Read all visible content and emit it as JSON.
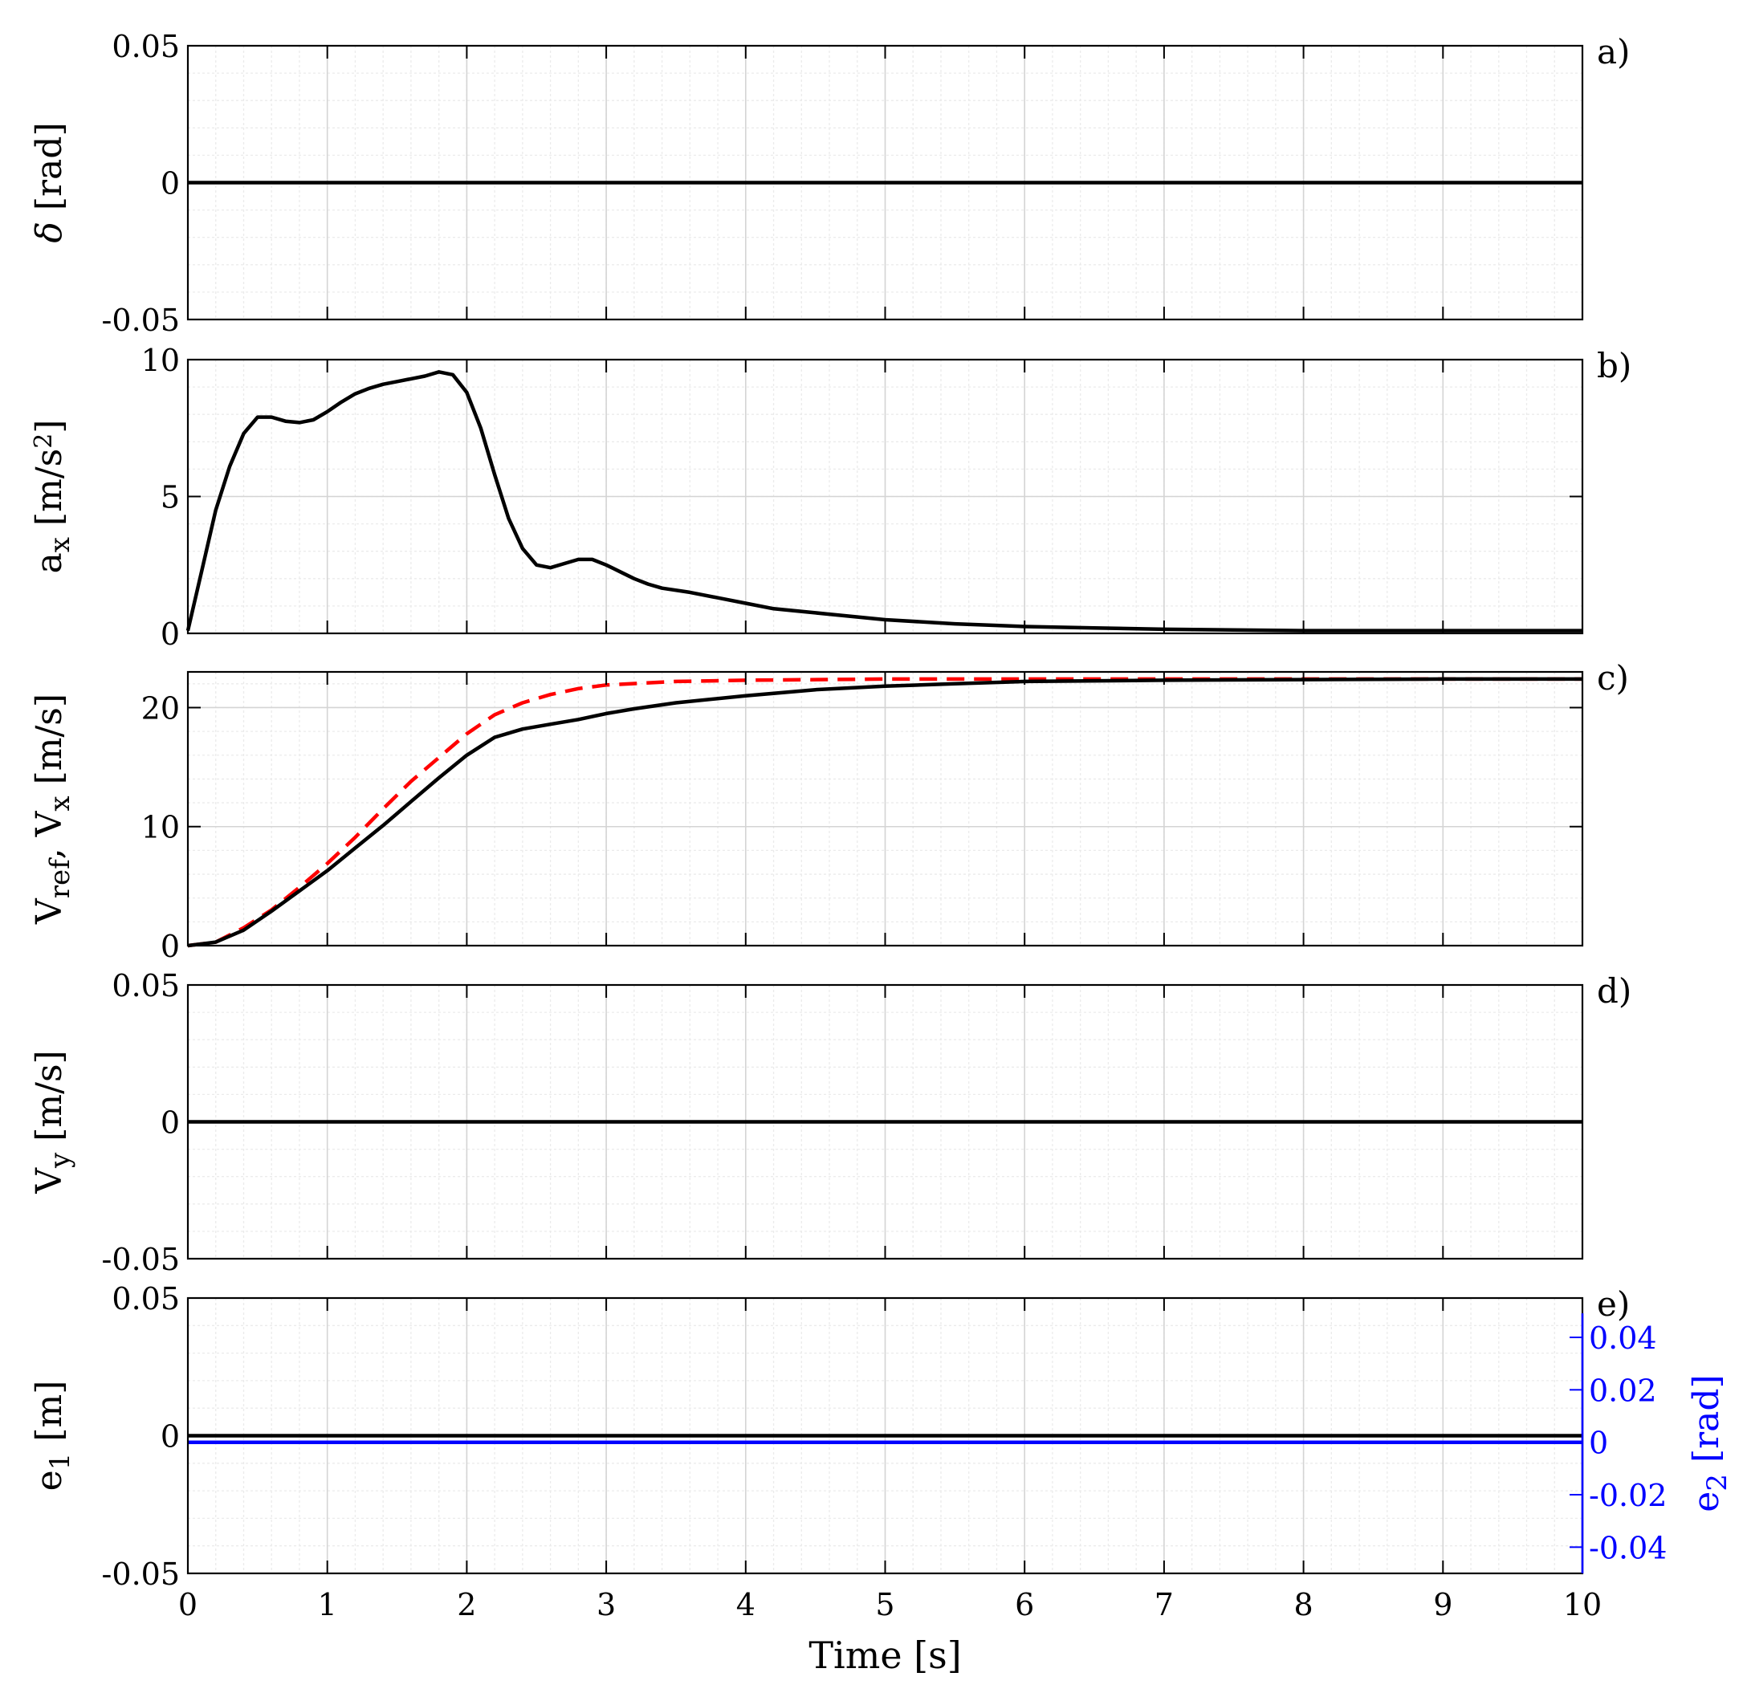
{
  "chart_data": [
    {
      "type": "line",
      "panel_label": "a)",
      "ylabel": "δ [rad]",
      "xlim": [
        0,
        10
      ],
      "ylim": [
        -0.05,
        0.05
      ],
      "yticks": [
        -0.05,
        0,
        0.05
      ],
      "ytick_labels": [
        "-0.05",
        "0",
        "0.05"
      ],
      "grid": true,
      "minor_grid": true,
      "series": [
        {
          "color": "#000000",
          "dash": "solid",
          "x": [
            0,
            10
          ],
          "y": [
            0,
            0
          ]
        }
      ]
    },
    {
      "type": "line",
      "panel_label": "b)",
      "ylabel": "a",
      "ylabel_sub": "x",
      "ylabel_tail": " [m/s",
      "ylabel_sup": "2",
      "ylabel_end": "]",
      "xlim": [
        0,
        10
      ],
      "ylim": [
        0,
        10
      ],
      "yticks": [
        0,
        5,
        10
      ],
      "ytick_labels": [
        "0",
        "5",
        "10"
      ],
      "grid": true,
      "minor_grid": true,
      "series": [
        {
          "color": "#000000",
          "dash": "solid",
          "x": [
            0,
            0.1,
            0.2,
            0.3,
            0.4,
            0.5,
            0.6,
            0.7,
            0.8,
            0.9,
            1.0,
            1.1,
            1.2,
            1.3,
            1.4,
            1.5,
            1.6,
            1.7,
            1.8,
            1.9,
            2.0,
            2.1,
            2.2,
            2.3,
            2.4,
            2.5,
            2.6,
            2.7,
            2.8,
            2.9,
            3.0,
            3.1,
            3.2,
            3.3,
            3.4,
            3.6,
            3.8,
            4.0,
            4.2,
            4.5,
            5.0,
            5.5,
            6.0,
            6.5,
            7.0,
            8.0,
            9.0,
            10.0
          ],
          "y": [
            0.1,
            2.3,
            4.5,
            6.1,
            7.3,
            7.9,
            7.9,
            7.75,
            7.7,
            7.8,
            8.1,
            8.45,
            8.75,
            8.95,
            9.1,
            9.2,
            9.3,
            9.4,
            9.55,
            9.45,
            8.8,
            7.5,
            5.8,
            4.2,
            3.1,
            2.5,
            2.4,
            2.55,
            2.7,
            2.7,
            2.5,
            2.25,
            2.0,
            1.8,
            1.65,
            1.5,
            1.3,
            1.1,
            0.9,
            0.75,
            0.5,
            0.35,
            0.25,
            0.2,
            0.15,
            0.1,
            0.1,
            0.1
          ]
        }
      ]
    },
    {
      "type": "line",
      "panel_label": "c)",
      "ylabel": "V",
      "ylabel_sub": "ref",
      "ylabel_mid": ", V",
      "ylabel_sub2": "x",
      "ylabel_end": " [m/s]",
      "xlim": [
        0,
        10
      ],
      "ylim": [
        0,
        23
      ],
      "yticks": [
        0,
        10,
        20
      ],
      "ytick_labels": [
        "0",
        "10",
        "20"
      ],
      "grid": true,
      "minor_grid": true,
      "series": [
        {
          "color": "#ff0000",
          "dash": "dashed",
          "x": [
            0,
            0.2,
            0.4,
            0.6,
            0.8,
            1.0,
            1.2,
            1.4,
            1.6,
            1.8,
            2.0,
            2.2,
            2.4,
            2.6,
            2.8,
            3.0,
            3.5,
            4.0,
            5.0,
            6.0,
            7.0,
            8.0,
            9.0,
            10.0
          ],
          "y": [
            0,
            0.3,
            1.5,
            3.0,
            4.9,
            6.9,
            9.1,
            11.5,
            13.8,
            15.8,
            17.8,
            19.4,
            20.4,
            21.1,
            21.6,
            21.9,
            22.2,
            22.3,
            22.4,
            22.4,
            22.4,
            22.4,
            22.4,
            22.4
          ]
        },
        {
          "color": "#000000",
          "dash": "solid",
          "x": [
            0,
            0.2,
            0.4,
            0.6,
            0.8,
            1.0,
            1.2,
            1.4,
            1.6,
            1.8,
            2.0,
            2.2,
            2.4,
            2.6,
            2.8,
            3.0,
            3.2,
            3.5,
            4.0,
            4.5,
            5.0,
            5.5,
            6.0,
            7.0,
            8.0,
            9.0,
            10.0
          ],
          "y": [
            0,
            0.3,
            1.3,
            2.9,
            4.6,
            6.3,
            8.2,
            10.1,
            12.1,
            14.1,
            16.0,
            17.5,
            18.2,
            18.6,
            19.0,
            19.5,
            19.9,
            20.4,
            21.0,
            21.5,
            21.8,
            22.0,
            22.2,
            22.3,
            22.35,
            22.4,
            22.4
          ]
        }
      ]
    },
    {
      "type": "line",
      "panel_label": "d)",
      "ylabel": "V",
      "ylabel_sub": "y",
      "ylabel_end": " [m/s]",
      "xlim": [
        0,
        10
      ],
      "ylim": [
        -0.05,
        0.05
      ],
      "yticks": [
        -0.05,
        0,
        0.05
      ],
      "ytick_labels": [
        "-0.05",
        "0",
        "0.05"
      ],
      "grid": true,
      "minor_grid": true,
      "series": [
        {
          "color": "#000000",
          "dash": "solid",
          "x": [
            0,
            10
          ],
          "y": [
            0,
            0
          ]
        }
      ]
    },
    {
      "type": "line",
      "panel_label": "e)",
      "ylabel": "e",
      "ylabel_sub": "1",
      "ylabel_end": " [m]",
      "xlabel": "Time [s]",
      "xlim": [
        0,
        10
      ],
      "ylim": [
        -0.05,
        0.05
      ],
      "yticks": [
        -0.05,
        0,
        0.05
      ],
      "ytick_labels": [
        "-0.05",
        "0",
        "0.05"
      ],
      "xticks": [
        0,
        1,
        2,
        3,
        4,
        5,
        6,
        7,
        8,
        9,
        10
      ],
      "xtick_labels": [
        "0",
        "1",
        "2",
        "3",
        "4",
        "5",
        "6",
        "7",
        "8",
        "9",
        "10"
      ],
      "grid": true,
      "minor_grid": true,
      "right_axis": {
        "ylabel": "e",
        "ylabel_sub": "2",
        "ylabel_end": " [rad]",
        "color": "#0000ff",
        "ylim": [
          -0.05,
          0.055
        ],
        "yticks": [
          -0.04,
          -0.02,
          0,
          0.02,
          0.04
        ],
        "ytick_labels": [
          "-0.04",
          "-0.02",
          "0",
          "0.02",
          "0.04"
        ]
      },
      "series": [
        {
          "color": "#000000",
          "dash": "solid",
          "axis": "left",
          "x": [
            0,
            10
          ],
          "y": [
            0,
            0
          ]
        },
        {
          "color": "#0000ff",
          "dash": "solid",
          "axis": "right",
          "x": [
            0,
            10
          ],
          "y": [
            0,
            0
          ]
        }
      ]
    }
  ]
}
